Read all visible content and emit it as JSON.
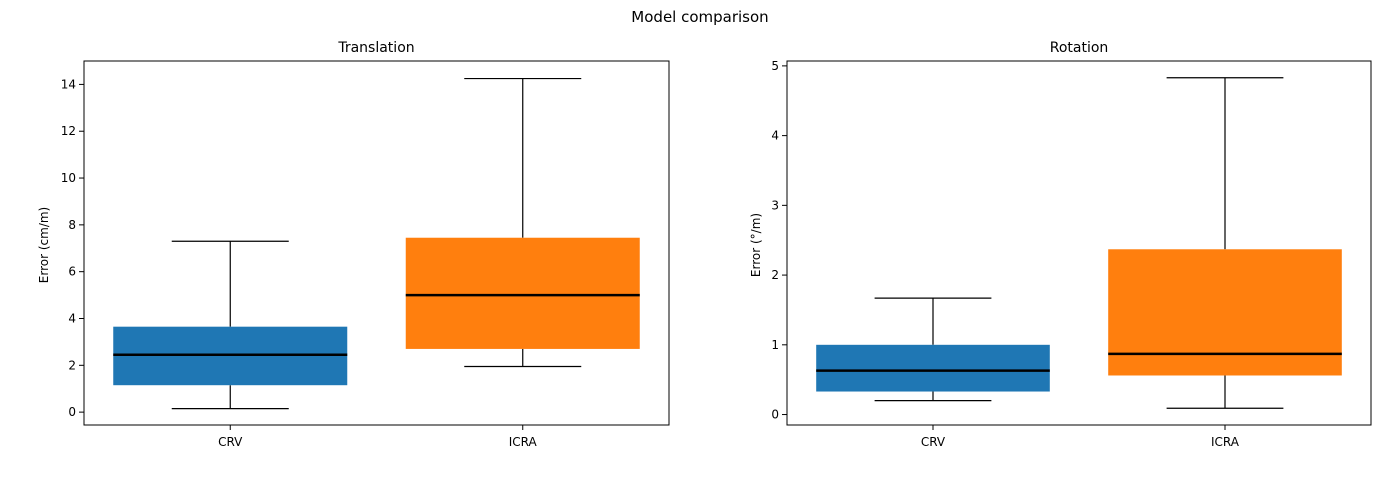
{
  "figure": {
    "title": "Model comparison"
  },
  "colors": {
    "crv": "#1f77b4",
    "icra": "#ff7f0e",
    "median": "#000000",
    "whisker": "#000000"
  },
  "chart_data": [
    {
      "type": "box",
      "title": "Translation",
      "xlabel": "",
      "ylabel": "Error (cm/m)",
      "categories": [
        "CRV",
        "ICRA"
      ],
      "ylim": [
        -0.55,
        15.0
      ],
      "yticks": [
        0,
        2,
        4,
        6,
        8,
        10,
        12,
        14
      ],
      "series": [
        {
          "min": 0.15,
          "q1": 1.15,
          "median": 2.45,
          "q3": 3.65,
          "max": 7.3
        },
        {
          "min": 1.95,
          "q1": 2.7,
          "median": 5.0,
          "q3": 7.45,
          "max": 14.25
        }
      ],
      "grid": false,
      "legend": "none"
    },
    {
      "type": "box",
      "title": "Rotation",
      "xlabel": "",
      "ylabel": "Error (°/m)",
      "categories": [
        "CRV",
        "ICRA"
      ],
      "ylim": [
        -0.15,
        5.07
      ],
      "yticks": [
        0,
        1,
        2,
        3,
        4,
        5
      ],
      "series": [
        {
          "min": 0.2,
          "q1": 0.33,
          "median": 0.63,
          "q3": 1.0,
          "max": 1.67
        },
        {
          "min": 0.09,
          "q1": 0.56,
          "median": 0.87,
          "q3": 2.37,
          "max": 4.83
        }
      ],
      "grid": false,
      "legend": "none"
    }
  ]
}
